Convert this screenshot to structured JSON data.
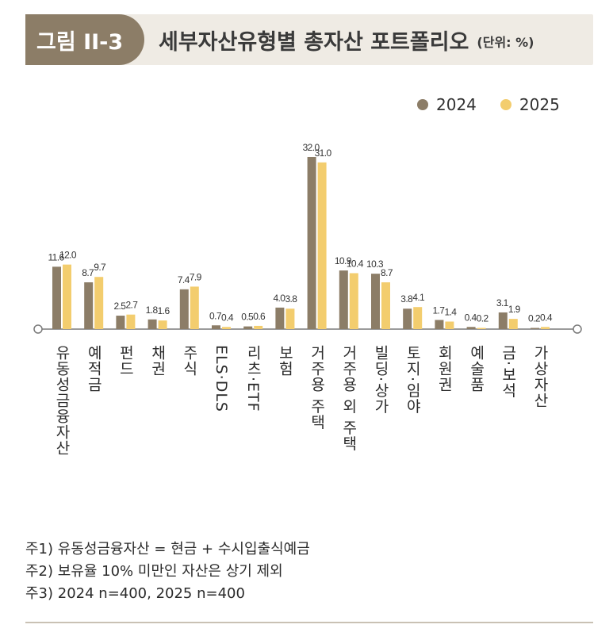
{
  "header": {
    "figure_label": "그림 II-3",
    "title": "세부자산유형별 총자산 포트폴리오",
    "unit": "(단위: %)"
  },
  "colors": {
    "series_2024": "#8c7d67",
    "series_2025": "#f3cd6e",
    "axis": "#7a7a7a",
    "header_bg": "#efebe4",
    "label_bg": "#8c7d67"
  },
  "chart_data": {
    "type": "bar",
    "categories": [
      "유동성금융자산",
      "예적금",
      "펀드",
      "채권",
      "주식",
      "ELS·DLS",
      "리츠·ETF",
      "보험",
      "거주용 주택",
      "거주용 외 주택",
      "빌딩·상가",
      "토지·임야",
      "회원권",
      "예술품",
      "금·보석",
      "가상자산"
    ],
    "series": [
      {
        "name": "2024",
        "values": [
          11.6,
          8.7,
          2.5,
          1.8,
          7.4,
          0.7,
          0.5,
          4.0,
          32.0,
          10.9,
          10.3,
          3.8,
          1.7,
          0.4,
          3.1,
          0.2
        ]
      },
      {
        "name": "2025",
        "values": [
          12.0,
          9.7,
          2.7,
          1.6,
          7.9,
          0.4,
          0.6,
          3.8,
          31.0,
          10.4,
          8.7,
          4.1,
          1.4,
          0.2,
          1.9,
          0.4
        ]
      }
    ],
    "value_labels": [
      [
        "11.6",
        "8.7",
        "2.5",
        "1.8",
        "7.4",
        "0.7",
        "0.5",
        "4.0",
        "32.0",
        "10.9",
        "10.3",
        "3.8",
        "1.7",
        "0.4",
        "3.1",
        "0.2"
      ],
      [
        "12.0",
        "9.7",
        "2.7",
        "1.6",
        "7.9",
        "0.4",
        "0.6",
        "3.8",
        "31.0",
        "10.4",
        "8.7",
        "4.1",
        "1.4",
        "0.2",
        "1.9",
        "0.4"
      ]
    ],
    "ylim": [
      0,
      32
    ],
    "grid": false,
    "legend_position": "top-right"
  },
  "notes": [
    "주1) 유동성금융자산 = 현금 + 수시입출식예금",
    "주2) 보유율 10% 미만인 자산은 상기 제외",
    "주3) 2024 n=400, 2025 n=400"
  ]
}
